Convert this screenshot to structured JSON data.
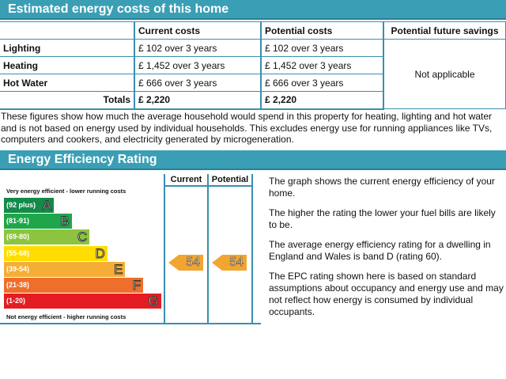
{
  "costs": {
    "title": "Estimated energy costs of this home",
    "headers": [
      "",
      "Current costs",
      "Potential costs",
      "Potential future savings"
    ],
    "rows": [
      {
        "label": "Lighting",
        "current": "£ 102 over 3 years",
        "potential": "£ 102 over 3 years"
      },
      {
        "label": "Heating",
        "current": "£ 1,452 over 3 years",
        "potential": "£ 1,452 over 3 years"
      },
      {
        "label": "Hot Water",
        "current": "£ 666 over 3 years",
        "potential": "£ 666 over 3 years"
      }
    ],
    "savings": "Not applicable",
    "totals": {
      "label": "Totals",
      "current": "£ 2,220",
      "potential": "£ 2,220"
    },
    "note": "These figures show how much the average household would spend in this property for heating, lighting and hot water and is not based on energy used by individual households. This excludes energy use for running appliances like TVs, computers and cookers, and electricity generated by microgeneration."
  },
  "rating": {
    "title": "Energy Efficiency Rating",
    "col_current": "Current",
    "col_potential": "Potential",
    "top_label": "Very energy efficient - lower running costs",
    "bottom_label": "Not energy efficient - higher running costs",
    "bands": [
      {
        "range": "(92 plus)",
        "letter": "A",
        "color": "#138a4a"
      },
      {
        "range": "(81-91)",
        "letter": "B",
        "color": "#1fa64a"
      },
      {
        "range": "(69-80)",
        "letter": "C",
        "color": "#8cc43f"
      },
      {
        "range": "(55-68)",
        "letter": "D",
        "color": "#ffdd00"
      },
      {
        "range": "(39-54)",
        "letter": "E",
        "color": "#f5ae35"
      },
      {
        "range": "(21-38)",
        "letter": "F",
        "color": "#ee6f2c"
      },
      {
        "range": "(1-20)",
        "letter": "G",
        "color": "#e31d23"
      }
    ],
    "current": "54",
    "potential": "54",
    "text": [
      "The graph shows the current energy efficiency of your home.",
      "The higher the rating the lower your fuel bills are likely to be.",
      "The average energy efficiency rating for a dwelling in England and Wales is band D (rating 60).",
      "The EPC rating shown here is based on standard assumptions about occupancy and energy use and may not reflect how energy is consumed by individual occupants."
    ]
  }
}
